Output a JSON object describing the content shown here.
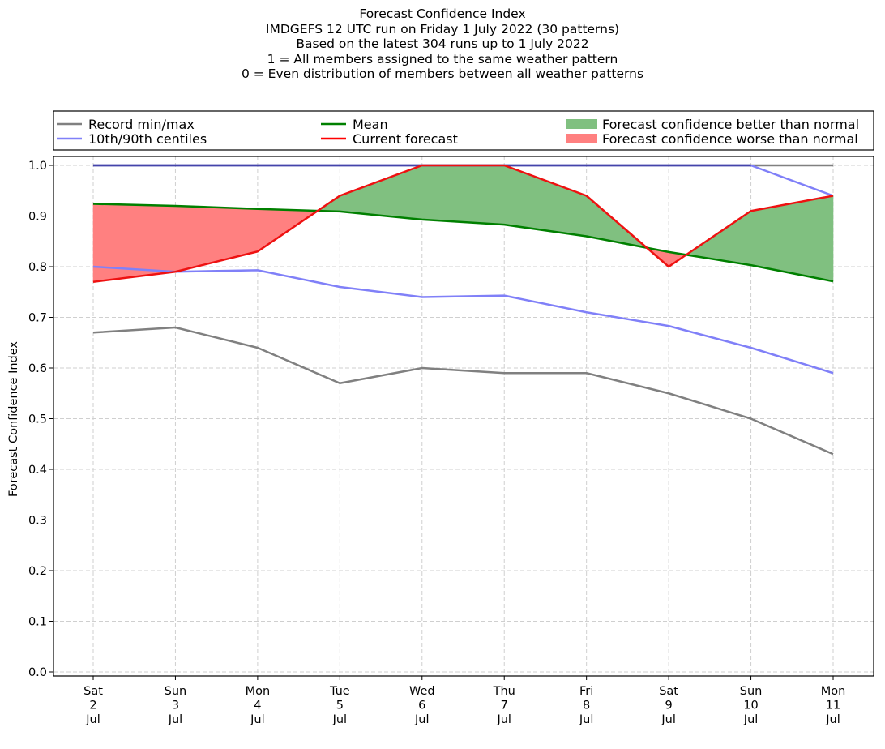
{
  "chart_data": {
    "type": "line",
    "title_lines": [
      "Forecast Confidence Index",
      "IMDGEFS 12 UTC run on Friday 1 July 2022 (30 patterns)",
      "Based on the latest 304 runs up to 1 July 2022",
      "1 = All members assigned to the same weather pattern",
      "0 = Even distribution of members between all weather patterns"
    ],
    "ylabel": "Forecast Confidence Index",
    "ylim": [
      0,
      1
    ],
    "yticks": [
      "0.0",
      "0.1",
      "0.2",
      "0.3",
      "0.4",
      "0.5",
      "0.6",
      "0.7",
      "0.8",
      "0.9",
      "1.0"
    ],
    "grid": true,
    "legend_position": "top",
    "categories": [
      [
        "Sat",
        "2",
        "Jul"
      ],
      [
        "Sun",
        "3",
        "Jul"
      ],
      [
        "Mon",
        "4",
        "Jul"
      ],
      [
        "Tue",
        "5",
        "Jul"
      ],
      [
        "Wed",
        "6",
        "Jul"
      ],
      [
        "Thu",
        "7",
        "Jul"
      ],
      [
        "Fri",
        "8",
        "Jul"
      ],
      [
        "Sat",
        "9",
        "Jul"
      ],
      [
        "Sun",
        "10",
        "Jul"
      ],
      [
        "Mon",
        "11",
        "Jul"
      ]
    ],
    "series": {
      "record_min": [
        0.67,
        0.68,
        0.64,
        0.57,
        0.6,
        0.59,
        0.59,
        0.55,
        0.5,
        0.43
      ],
      "record_max": [
        1.0,
        1.0,
        1.0,
        1.0,
        1.0,
        1.0,
        1.0,
        1.0,
        1.0,
        1.0
      ],
      "p10": [
        0.8,
        0.79,
        0.793,
        0.76,
        0.74,
        0.743,
        0.71,
        0.683,
        0.64,
        0.59
      ],
      "p90": [
        1.0,
        1.0,
        1.0,
        1.0,
        1.0,
        1.0,
        1.0,
        1.0,
        1.0,
        0.94
      ],
      "mean": [
        0.924,
        0.92,
        0.914,
        0.909,
        0.893,
        0.883,
        0.86,
        0.829,
        0.803,
        0.771
      ],
      "current": [
        0.77,
        0.79,
        0.83,
        0.94,
        1.0,
        1.0,
        0.94,
        0.8,
        0.91,
        0.94
      ]
    },
    "legend": [
      {
        "key": "record",
        "label": "Record min/max",
        "kind": "line",
        "color": "#808080"
      },
      {
        "key": "centiles",
        "label": "10th/90th centiles",
        "kind": "line",
        "color": "#8080f8"
      },
      {
        "key": "mean",
        "label": "Mean",
        "kind": "line",
        "color": "#008000"
      },
      {
        "key": "current",
        "label": "Current forecast",
        "kind": "line",
        "color": "#ff0000"
      },
      {
        "key": "better",
        "label": "Forecast confidence better than normal",
        "kind": "patch",
        "color": "#80c080"
      },
      {
        "key": "worse",
        "label": "Forecast confidence worse than normal",
        "kind": "patch",
        "color": "#ff8080"
      }
    ],
    "colors": {
      "record": "#808080",
      "centiles": "#8080f8",
      "mean": "#008000",
      "current": "#ee1111",
      "better_fill": "#80c080",
      "worse_fill": "#ff8080",
      "overlap_line": "#4444aa",
      "grid": "#cfcfcf"
    }
  }
}
